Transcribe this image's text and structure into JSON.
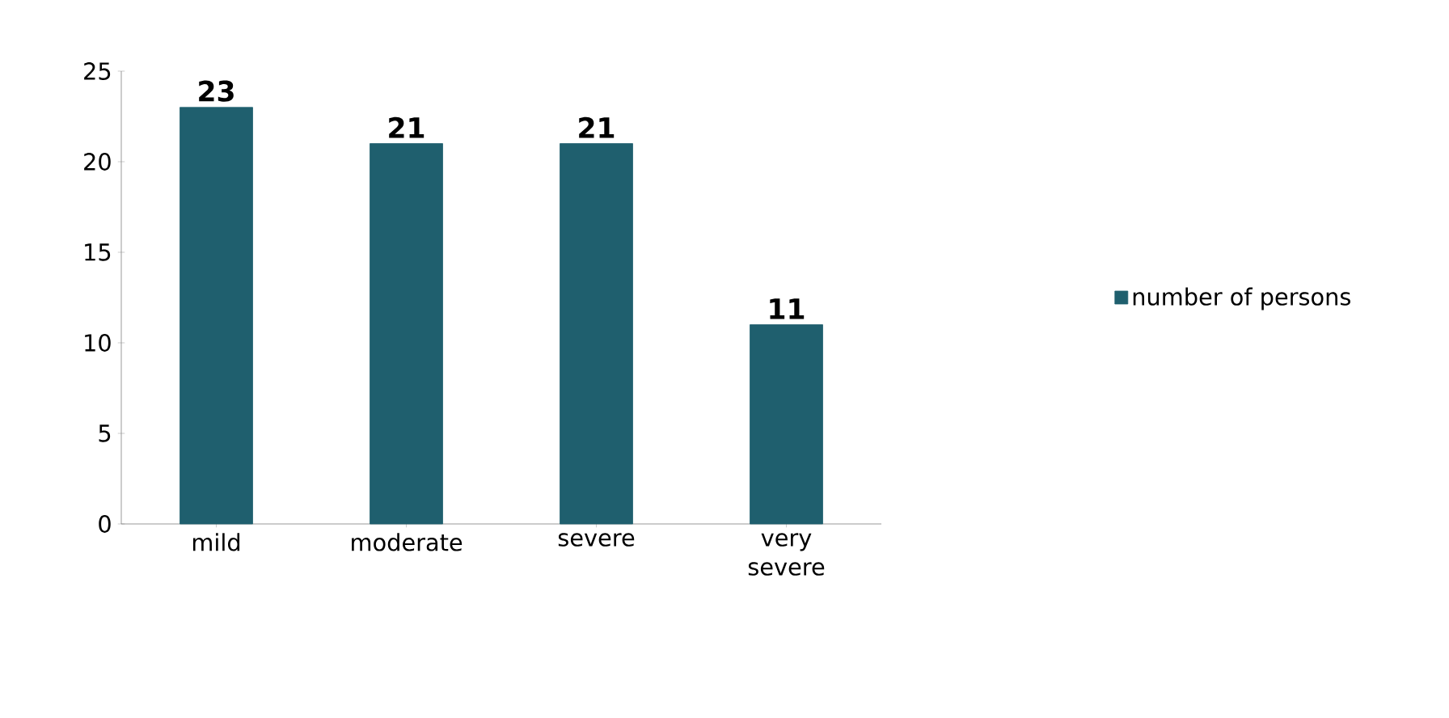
{
  "chart_data": {
    "type": "bar",
    "categories": [
      "mild",
      "moderate",
      "severe",
      "very severe"
    ],
    "series": [
      {
        "name": "number of persons",
        "color": "#1f5f6e",
        "values": [
          23,
          21,
          21,
          11
        ]
      }
    ],
    "ylim": [
      0,
      25
    ],
    "yticks": [
      0,
      5,
      10,
      15,
      20,
      25
    ],
    "data_labels": true,
    "legend": "right"
  }
}
